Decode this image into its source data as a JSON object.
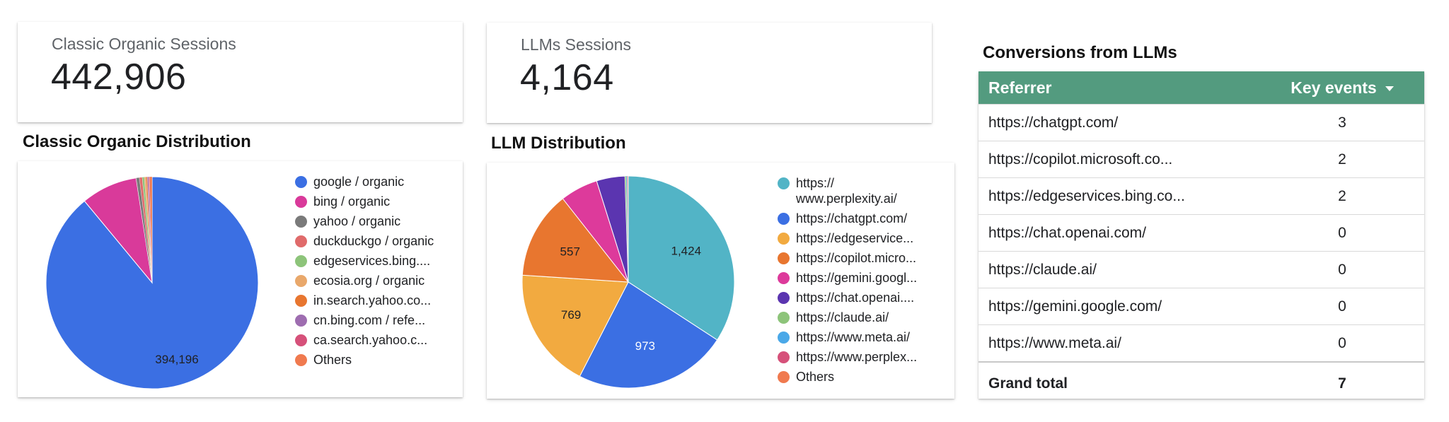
{
  "kpis": {
    "organic": {
      "label": "Classic Organic Sessions",
      "value": "442,906"
    },
    "llm": {
      "label": "LLMs Sessions",
      "value": "4,164"
    }
  },
  "sections": {
    "organic_title": "Classic Organic Distribution",
    "llm_title": "LLM Distribution",
    "conversions_title": "Conversions from LLMs"
  },
  "chart_data": [
    {
      "type": "pie",
      "title": "Classic Organic Distribution",
      "slices": [
        {
          "label": "google / organic",
          "value": 394196,
          "color": "#3b6fe3",
          "shown_label": "394,196"
        },
        {
          "label": "bing / organic",
          "value": 38000,
          "color": "#d93a9a"
        },
        {
          "label": "yahoo / organic",
          "value": 2200,
          "color": "#7a7a7a"
        },
        {
          "label": "duckduckgo / organic",
          "value": 1900,
          "color": "#e06b6b"
        },
        {
          "label": "edgeservices.bing....",
          "value": 1400,
          "color": "#8dc47a"
        },
        {
          "label": "ecosia.org / organic",
          "value": 1100,
          "color": "#e9a86b"
        },
        {
          "label": "in.search.yahoo.co...",
          "value": 900,
          "color": "#e87630"
        },
        {
          "label": "cn.bing.com / refe...",
          "value": 800,
          "color": "#9e6db0"
        },
        {
          "label": "ca.search.yahoo.c...",
          "value": 700,
          "color": "#d6517a"
        },
        {
          "label": "Others",
          "value": 1710,
          "color": "#f07a4f"
        }
      ]
    },
    {
      "type": "pie",
      "title": "LLM Distribution",
      "slices": [
        {
          "label": "https://\nwww.perplexity.ai/",
          "value": 1424,
          "color": "#52b4c6",
          "shown_label": "1,424"
        },
        {
          "label": "https://chatgpt.com/",
          "value": 973,
          "color": "#3b6fe3",
          "shown_label": "973"
        },
        {
          "label": "https://edgeservice...",
          "value": 769,
          "color": "#f2aa40",
          "shown_label": "769"
        },
        {
          "label": "https://copilot.micro...",
          "value": 557,
          "color": "#e8762f",
          "shown_label": "557"
        },
        {
          "label": "https://gemini.googl...",
          "value": 240,
          "color": "#dd3a9b"
        },
        {
          "label": "https://chat.openai....",
          "value": 180,
          "color": "#5b35b0"
        },
        {
          "label": "https://claude.ai/",
          "value": 8,
          "color": "#8dc47a"
        },
        {
          "label": "https://www.meta.ai/",
          "value": 6,
          "color": "#4aa8e8"
        },
        {
          "label": "https://www.perplex...",
          "value": 4,
          "color": "#d6517a"
        },
        {
          "label": "Others",
          "value": 3,
          "color": "#f07a4f"
        }
      ]
    }
  ],
  "conversions": {
    "headers": {
      "referrer": "Referrer",
      "key_events": "Key events"
    },
    "rows": [
      {
        "referrer": "https://chatgpt.com/",
        "key_events": "3"
      },
      {
        "referrer": "https://copilot.microsoft.co...",
        "key_events": "2"
      },
      {
        "referrer": "https://edgeservices.bing.co...",
        "key_events": "2"
      },
      {
        "referrer": "https://chat.openai.com/",
        "key_events": "0"
      },
      {
        "referrer": "https://claude.ai/",
        "key_events": "0"
      },
      {
        "referrer": "https://gemini.google.com/",
        "key_events": "0"
      },
      {
        "referrer": "https://www.meta.ai/",
        "key_events": "0"
      }
    ],
    "total": {
      "label": "Grand total",
      "value": "7"
    },
    "header_color": "#539b7f"
  }
}
